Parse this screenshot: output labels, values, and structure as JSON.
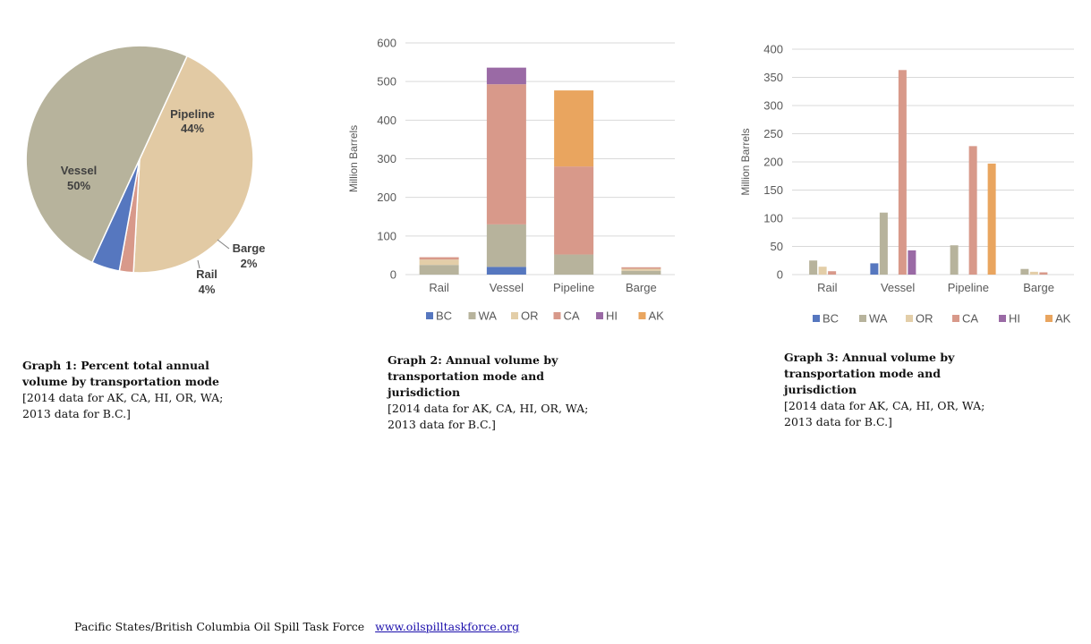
{
  "colors": {
    "BC": "#5677bf",
    "WA": "#b7b39c",
    "OR": "#e3cea8",
    "CA": "#d8998a",
    "HI": "#9a6aa5",
    "AK": "#e9a55f",
    "grid": "#d9d9d9",
    "axis_text": "#595959"
  },
  "chart_data": [
    {
      "type": "pie",
      "slices": [
        {
          "label": "Pipeline",
          "value": 44,
          "pct_label": "44%",
          "color": "#e2caa4"
        },
        {
          "label": "Barge",
          "value": 2,
          "pct_label": "2%",
          "color": "#d8998a"
        },
        {
          "label": "Rail",
          "value": 4,
          "pct_label": "4%",
          "color": "#5677bf"
        },
        {
          "label": "Vessel",
          "value": 50,
          "pct_label": "50%",
          "color": "#b7b39c"
        }
      ]
    },
    {
      "type": "bar",
      "stacked": true,
      "ylabel": "Million Barrels",
      "ylim": [
        0,
        600
      ],
      "yticks": [
        0,
        100,
        200,
        300,
        400,
        500,
        600
      ],
      "categories": [
        "Rail",
        "Vessel",
        "Pipeline",
        "Barge"
      ],
      "series": [
        {
          "name": "BC",
          "values": [
            0,
            20,
            0,
            0
          ]
        },
        {
          "name": "WA",
          "values": [
            25,
            110,
            52,
            10
          ]
        },
        {
          "name": "OR",
          "values": [
            14,
            0,
            0,
            5
          ]
        },
        {
          "name": "CA",
          "values": [
            6,
            363,
            228,
            4
          ]
        },
        {
          "name": "HI",
          "values": [
            0,
            43,
            0,
            0
          ]
        },
        {
          "name": "AK",
          "values": [
            0,
            0,
            197,
            0
          ]
        }
      ],
      "legend": "bottom"
    },
    {
      "type": "bar",
      "stacked": false,
      "ylabel": "Million Barrels",
      "ylim": [
        0,
        400
      ],
      "yticks": [
        0,
        50,
        100,
        150,
        200,
        250,
        300,
        350,
        400
      ],
      "categories": [
        "Rail",
        "Vessel",
        "Pipeline",
        "Barge"
      ],
      "series": [
        {
          "name": "BC",
          "values": [
            0,
            20,
            0,
            0
          ]
        },
        {
          "name": "WA",
          "values": [
            25,
            110,
            52,
            10
          ]
        },
        {
          "name": "OR",
          "values": [
            14,
            0,
            0,
            5
          ]
        },
        {
          "name": "CA",
          "values": [
            6,
            363,
            228,
            4
          ]
        },
        {
          "name": "HI",
          "values": [
            0,
            43,
            0,
            0
          ]
        },
        {
          "name": "AK",
          "values": [
            0,
            0,
            197,
            0
          ]
        }
      ],
      "legend": "bottom"
    }
  ],
  "captions": {
    "graph1_title": "Graph 1: Percent total annual volume by transportation mode",
    "graph1_note": "[2014 data for AK, CA, HI, OR, WA; 2013 data for B.C.]",
    "graph2_title": "Graph 2: Annual volume by transportation mode and jurisdiction",
    "graph2_note": "[2014 data for AK, CA, HI, OR, WA; 2013 data for B.C.]",
    "graph3_title": "Graph 3: Annual volume by transportation mode and jurisdiction",
    "graph3_note": "[2014 data for AK, CA, HI, OR, WA; 2013 data for B.C.]"
  },
  "footer": {
    "org": "Pacific States/British Columbia Oil Spill Task Force",
    "link": "www.oilspilltaskforce.org"
  }
}
